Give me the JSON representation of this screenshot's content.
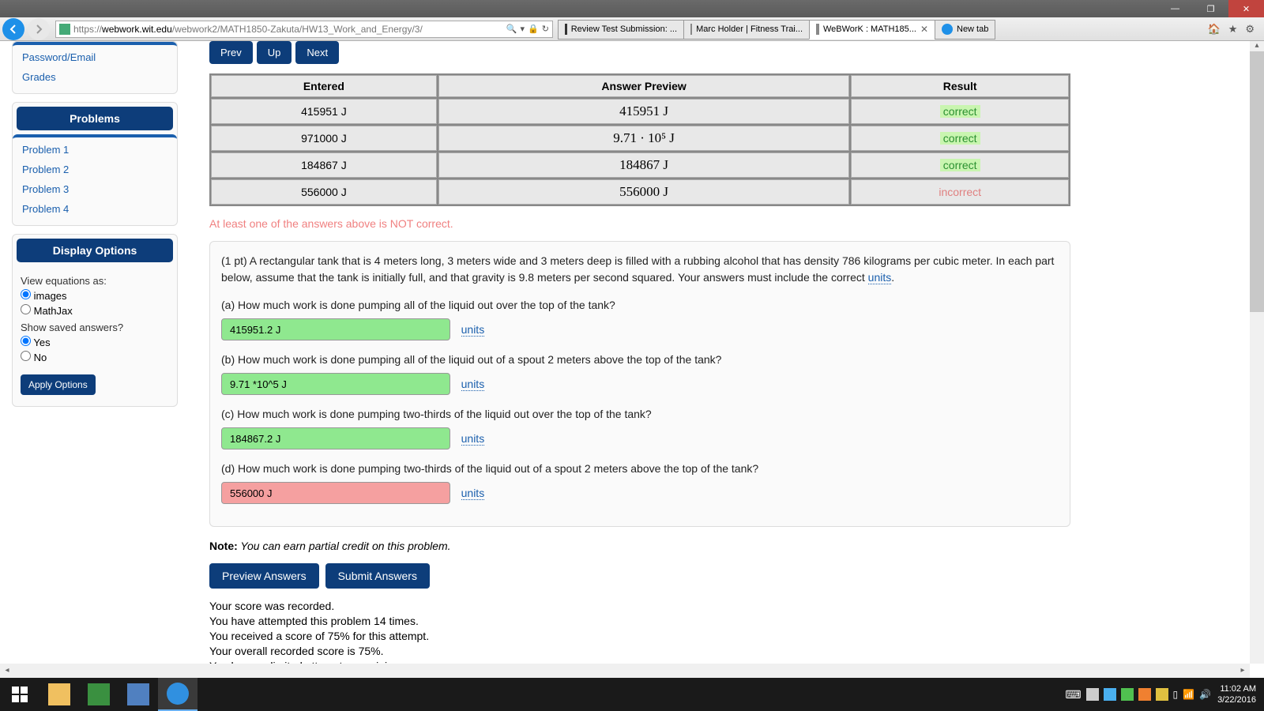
{
  "window": {
    "minimize": "—",
    "restore": "❐",
    "close": "✕"
  },
  "browser": {
    "url_host": "webwork.wit.edu",
    "url_prefix": "https://",
    "url_path": "/webwork2/MATH1850-Zakuta/HW13_Work_and_Energy/3/",
    "tabs": [
      {
        "title": "Review Test Submission: ...",
        "active": false
      },
      {
        "title": "Marc Holder | Fitness Trai...",
        "active": false
      },
      {
        "title": "WeBWorK : MATH185...",
        "active": true
      },
      {
        "title": "New tab",
        "active": false
      }
    ]
  },
  "sidebar": {
    "top_links": [
      "Password/Email",
      "Grades"
    ],
    "problems_header": "Problems",
    "problems": [
      "Problem 1",
      "Problem 2",
      "Problem 3",
      "Problem 4"
    ],
    "display_header": "Display Options",
    "view_eq_label": "View equations as:",
    "view_eq_opts": [
      "images",
      "MathJax"
    ],
    "show_saved_label": "Show saved answers?",
    "show_saved_opts": [
      "Yes",
      "No"
    ],
    "apply": "Apply Options"
  },
  "nav": {
    "prev": "Prev",
    "up": "Up",
    "next": "Next"
  },
  "results": {
    "headers": [
      "Entered",
      "Answer Preview",
      "Result"
    ],
    "col_widths": [
      "280px",
      "510px",
      "270px"
    ],
    "rows": [
      {
        "entered": "415951 J",
        "preview": "415951 J",
        "result": "correct",
        "ok": true
      },
      {
        "entered": "971000 J",
        "preview": "9.71 · 10⁵  J",
        "result": "correct",
        "ok": true
      },
      {
        "entered": "184867 J",
        "preview": "184867 J",
        "result": "correct",
        "ok": true
      },
      {
        "entered": "556000 J",
        "preview": "556000 J",
        "result": "incorrect",
        "ok": false
      }
    ]
  },
  "warning": "At least one of the answers above is NOT correct.",
  "problem": {
    "intro": "(1 pt) A rectangular tank that is 4 meters long, 3 meters wide and 3 meters deep is filled with a rubbing alcohol that has density 786 kilograms per cubic meter. In each part below, assume that the tank is initially full, and that gravity is 9.8 meters per second squared. Your answers must include the correct ",
    "units_word": "units",
    "intro_end": ".",
    "parts": [
      {
        "q": "(a) How much work is done pumping all of the liquid out over the top of the tank?",
        "val": "415951.2 J",
        "ok": true
      },
      {
        "q": "(b) How much work is done pumping all of the liquid out of a spout 2 meters above the top of the tank?",
        "val": "9.71 *10^5 J",
        "ok": true
      },
      {
        "q": "(c) How much work is done pumping two-thirds of the liquid out over the top of the tank?",
        "val": "184867.2 J",
        "ok": true
      },
      {
        "q": "(d) How much work is done pumping two-thirds of the liquid out of a spout 2 meters above the top of the tank?",
        "val": "556000 J",
        "ok": false
      }
    ],
    "units_link": "units"
  },
  "note_label": "Note:",
  "note_text": " You can earn partial credit on this problem.",
  "buttons": {
    "preview": "Preview Answers",
    "submit": "Submit Answers"
  },
  "score": [
    "Your score was recorded.",
    "You have attempted this problem 14 times.",
    "You received a score of 75% for this attempt.",
    "Your overall recorded score is 75%.",
    "You have unlimited attempts remaining."
  ],
  "taskbar": {
    "time": "11:02 AM",
    "date": "3/22/2016"
  },
  "colors": {
    "primary": "#0d3d7a",
    "link": "#1a5fad",
    "correct_bg": "#8fe88f",
    "incorrect_bg": "#f5a0a0",
    "warn": "#f08080"
  }
}
